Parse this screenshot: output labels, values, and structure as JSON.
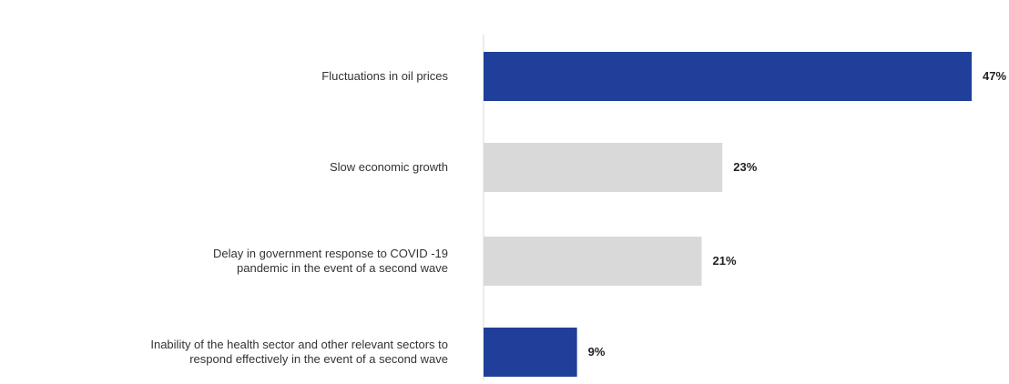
{
  "chart_data": {
    "type": "bar",
    "orientation": "horizontal",
    "title": "",
    "xlabel": "",
    "ylabel": "",
    "xlim": [
      0,
      47
    ],
    "grid": false,
    "legend": "none",
    "categories": [
      [
        "Fluctuations in oil prices"
      ],
      [
        "Slow economic growth"
      ],
      [
        "Delay in government response to COVID -19",
        "pandemic in the event of a second wave"
      ],
      [
        "Inability of the health sector and other relevant sectors to",
        "respond effectively in the event of a second wave"
      ]
    ],
    "values": [
      47,
      23,
      21,
      9
    ],
    "value_labels": [
      "47%",
      "23%",
      "21%",
      "9%"
    ],
    "colors": [
      "#1f3f9a",
      "#d9d9d9",
      "#d9d9d9",
      "#1f3f9a"
    ],
    "axis_color": "#d9d9d9"
  }
}
